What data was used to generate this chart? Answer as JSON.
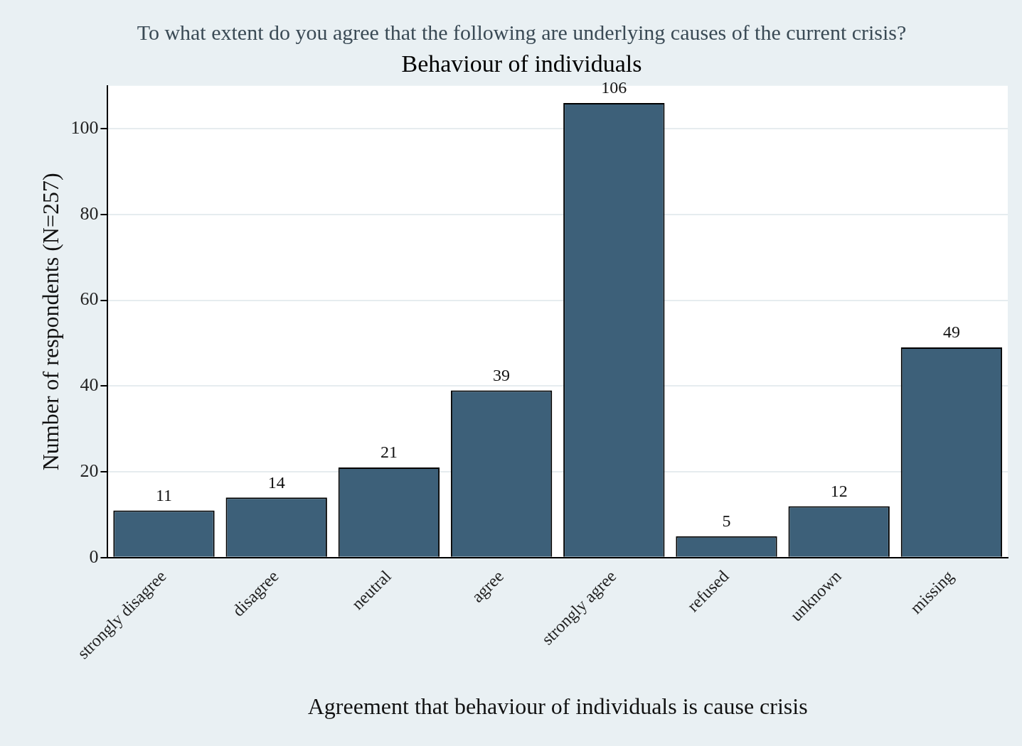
{
  "chart_data": {
    "type": "bar",
    "title": "To what extent do you agree that the following are underlying causes of the current crisis?",
    "subtitle": "Behaviour of individuals",
    "xlabel": "Agreement that behaviour of individuals is cause crisis",
    "ylabel": "Number of respondents (N=257)",
    "categories": [
      "strongly disagree",
      "disagree",
      "neutral",
      "agree",
      "strongly agree",
      "refused",
      "unknown",
      "missing"
    ],
    "values": [
      11,
      14,
      21,
      39,
      106,
      5,
      12,
      49
    ],
    "color": "#3d6079",
    "ylim": [
      0,
      110
    ],
    "yticks": [
      0,
      20,
      40,
      60,
      80,
      100
    ],
    "grid": "y",
    "legend": false,
    "data_labels": true
  }
}
